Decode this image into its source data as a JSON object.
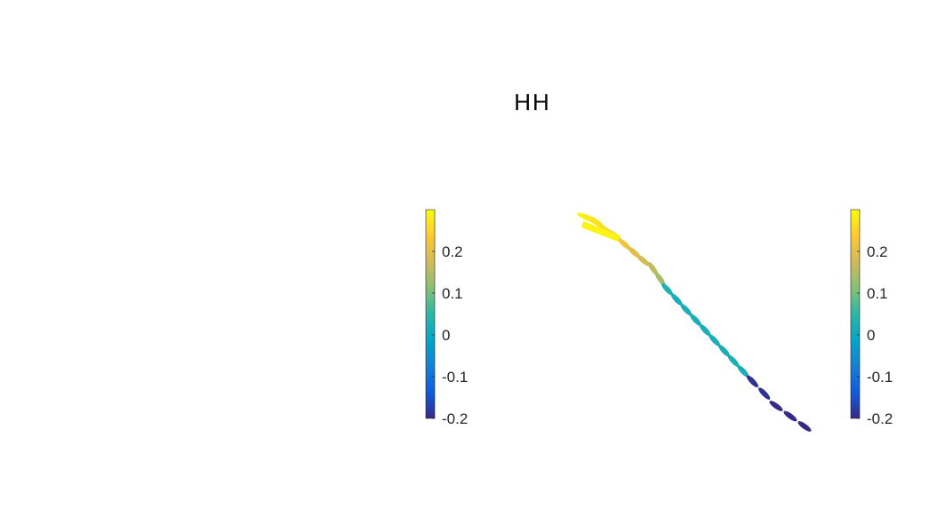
{
  "chart_data": {
    "type": "scatter",
    "title": "HH",
    "xlabel": "",
    "ylabel": "",
    "colormap": "parula",
    "colormap_stops": [
      "#352a87",
      "#0f5cdd",
      "#1481d6",
      "#06a4ca",
      "#2eb7a4",
      "#87bf77",
      "#d1bb59",
      "#fec832",
      "#f9fb0e"
    ],
    "color_scale": {
      "min": -0.2,
      "max": 0.3,
      "ticks": [
        -0.2,
        -0.1,
        0,
        0.1,
        0.2
      ],
      "tick_labels": [
        "-0.2",
        "-0.1",
        "0",
        "0.1",
        "0.2"
      ]
    },
    "colorbars": [
      "left",
      "right"
    ],
    "axes_visible": false,
    "grid": false,
    "series": [
      {
        "values": [
          0.29,
          0.28,
          0.27,
          0.26,
          0.24,
          0.22,
          0.2,
          0.18,
          0.16,
          0.14,
          0.03,
          0.02,
          0.02,
          0.02,
          0.02,
          0.02,
          0.02,
          0.02,
          0.02,
          -0.19,
          -0.19,
          -0.2,
          -0.2,
          -0.2
        ],
        "x": [
          0.0,
          0.02,
          0.05,
          0.08,
          0.12,
          0.16,
          0.2,
          0.24,
          0.28,
          0.31,
          0.34,
          0.38,
          0.42,
          0.46,
          0.5,
          0.54,
          0.58,
          0.62,
          0.66,
          0.7,
          0.75,
          0.8,
          0.86,
          0.92
        ],
        "y": [
          1.0,
          0.99,
          0.97,
          0.94,
          0.91,
          0.87,
          0.83,
          0.79,
          0.75,
          0.7,
          0.65,
          0.6,
          0.55,
          0.5,
          0.45,
          0.4,
          0.35,
          0.3,
          0.25,
          0.2,
          0.14,
          0.08,
          0.03,
          -0.02
        ]
      }
    ]
  }
}
